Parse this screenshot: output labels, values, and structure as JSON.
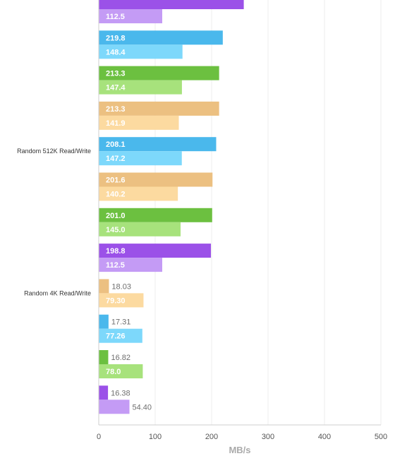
{
  "chart_data": {
    "type": "bar",
    "orientation": "horizontal",
    "xlabel": "MB/s",
    "xlim": [
      0,
      500
    ],
    "xticks": [
      0,
      100,
      200,
      300,
      400,
      500
    ],
    "grid": true,
    "colors": {
      "purple_dark": "#9b51e8",
      "purple_light": "#c49bf5",
      "blue_dark": "#4ab8ec",
      "blue_light": "#7dd8fb",
      "green_dark": "#6cc040",
      "green_light": "#a7e27c",
      "orange_dark": "#ecc081",
      "orange_light": "#fcdaa0"
    },
    "groups": [
      {
        "category": "",
        "bars": [
          {
            "value": 257.0,
            "color": "purple_dark",
            "label": ""
          },
          {
            "value": 112.5,
            "color": "purple_light",
            "label": "112.5"
          }
        ]
      },
      {
        "category": "",
        "bars": [
          {
            "value": 219.8,
            "color": "blue_dark",
            "label": "219.8"
          },
          {
            "value": 148.4,
            "color": "blue_light",
            "label": "148.4"
          }
        ]
      },
      {
        "category": "",
        "bars": [
          {
            "value": 213.3,
            "color": "green_dark",
            "label": "213.3"
          },
          {
            "value": 147.4,
            "color": "green_light",
            "label": "147.4"
          }
        ]
      },
      {
        "category": "",
        "bars": [
          {
            "value": 213.3,
            "color": "orange_dark",
            "label": "213.3"
          },
          {
            "value": 141.9,
            "color": "orange_light",
            "label": "141.9"
          }
        ]
      },
      {
        "category": "Random 512K Read/Write",
        "bars": [
          {
            "value": 208.1,
            "color": "blue_dark",
            "label": "208.1"
          },
          {
            "value": 147.2,
            "color": "blue_light",
            "label": "147.2"
          }
        ]
      },
      {
        "category": "",
        "bars": [
          {
            "value": 201.6,
            "color": "orange_dark",
            "label": "201.6"
          },
          {
            "value": 140.2,
            "color": "orange_light",
            "label": "140.2"
          }
        ]
      },
      {
        "category": "",
        "bars": [
          {
            "value": 201.0,
            "color": "green_dark",
            "label": "201.0"
          },
          {
            "value": 145.0,
            "color": "green_light",
            "label": "145.0"
          }
        ]
      },
      {
        "category": "",
        "bars": [
          {
            "value": 198.8,
            "color": "purple_dark",
            "label": "198.8"
          },
          {
            "value": 112.5,
            "color": "purple_light",
            "label": "112.5"
          }
        ]
      },
      {
        "category": "Random 4K Read/Write",
        "bars": [
          {
            "value": 18.03,
            "color": "orange_dark",
            "label": "18.03"
          },
          {
            "value": 79.3,
            "color": "orange_light",
            "label": "79.30"
          }
        ]
      },
      {
        "category": "",
        "bars": [
          {
            "value": 17.31,
            "color": "blue_dark",
            "label": "17.31"
          },
          {
            "value": 77.26,
            "color": "blue_light",
            "label": "77.26"
          }
        ]
      },
      {
        "category": "",
        "bars": [
          {
            "value": 16.82,
            "color": "green_dark",
            "label": "16.82"
          },
          {
            "value": 78.0,
            "color": "green_light",
            "label": "78.0"
          }
        ]
      },
      {
        "category": "",
        "bars": [
          {
            "value": 16.38,
            "color": "purple_dark",
            "label": "16.38"
          },
          {
            "value": 54.4,
            "color": "purple_light",
            "label": "54.40"
          }
        ]
      }
    ]
  }
}
